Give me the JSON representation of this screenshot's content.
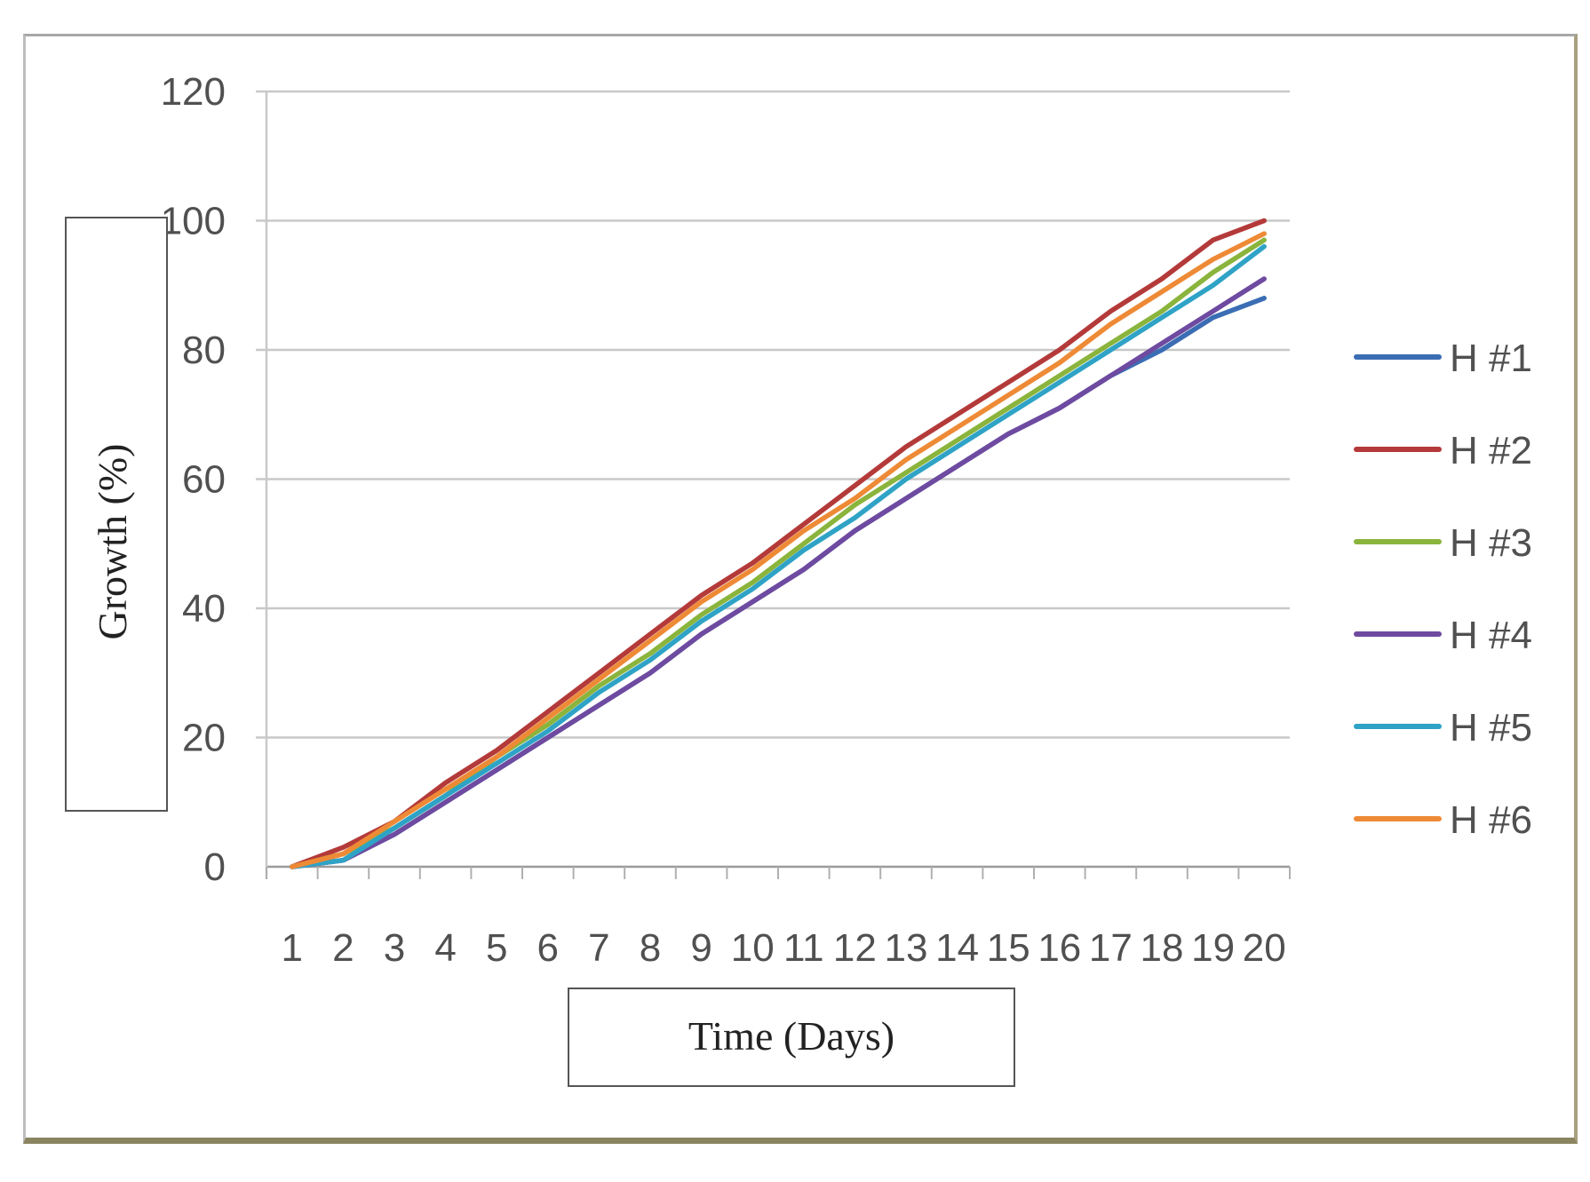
{
  "chart_data": {
    "type": "line",
    "title": "",
    "xlabel": "Time (Days)",
    "ylabel": "Growth (%)",
    "ylim": [
      0,
      120
    ],
    "yticks": [
      "0",
      "20",
      "40",
      "60",
      "80",
      "100",
      "120"
    ],
    "categories": [
      "1",
      "2",
      "3",
      "4",
      "5",
      "6",
      "7",
      "8",
      "9",
      "10",
      "11",
      "12",
      "13",
      "14",
      "15",
      "16",
      "17",
      "18",
      "19",
      "20"
    ],
    "grid": true,
    "legend_position": "right",
    "series": [
      {
        "name": "H #1",
        "color": "#3b6db4",
        "values": [
          0,
          1,
          5,
          10,
          15,
          20,
          25,
          30,
          36,
          41,
          46,
          52,
          57,
          62,
          67,
          71,
          76,
          80,
          85,
          88
        ]
      },
      {
        "name": "H #2",
        "color": "#b43a3a",
        "values": [
          0,
          3,
          7,
          13,
          18,
          24,
          30,
          36,
          42,
          47,
          53,
          59,
          65,
          70,
          75,
          80,
          86,
          91,
          97,
          100
        ]
      },
      {
        "name": "H #3",
        "color": "#8ab43c",
        "values": [
          0,
          2,
          6,
          11,
          17,
          22,
          28,
          33,
          39,
          44,
          50,
          56,
          61,
          66,
          71,
          76,
          81,
          86,
          92,
          97
        ]
      },
      {
        "name": "H #4",
        "color": "#6e4aa0",
        "values": [
          0,
          1,
          5,
          10,
          15,
          20,
          25,
          30,
          36,
          41,
          46,
          52,
          57,
          62,
          67,
          71,
          76,
          81,
          86,
          91
        ]
      },
      {
        "name": "H #5",
        "color": "#2fa3c6",
        "values": [
          0,
          1,
          6,
          11,
          16,
          21,
          27,
          32,
          38,
          43,
          49,
          54,
          60,
          65,
          70,
          75,
          80,
          85,
          90,
          96
        ]
      },
      {
        "name": "H #6",
        "color": "#ee8a36",
        "values": [
          0,
          2,
          7,
          12,
          17,
          23,
          29,
          35,
          41,
          46,
          52,
          57,
          63,
          68,
          73,
          78,
          84,
          89,
          94,
          98
        ]
      }
    ]
  }
}
